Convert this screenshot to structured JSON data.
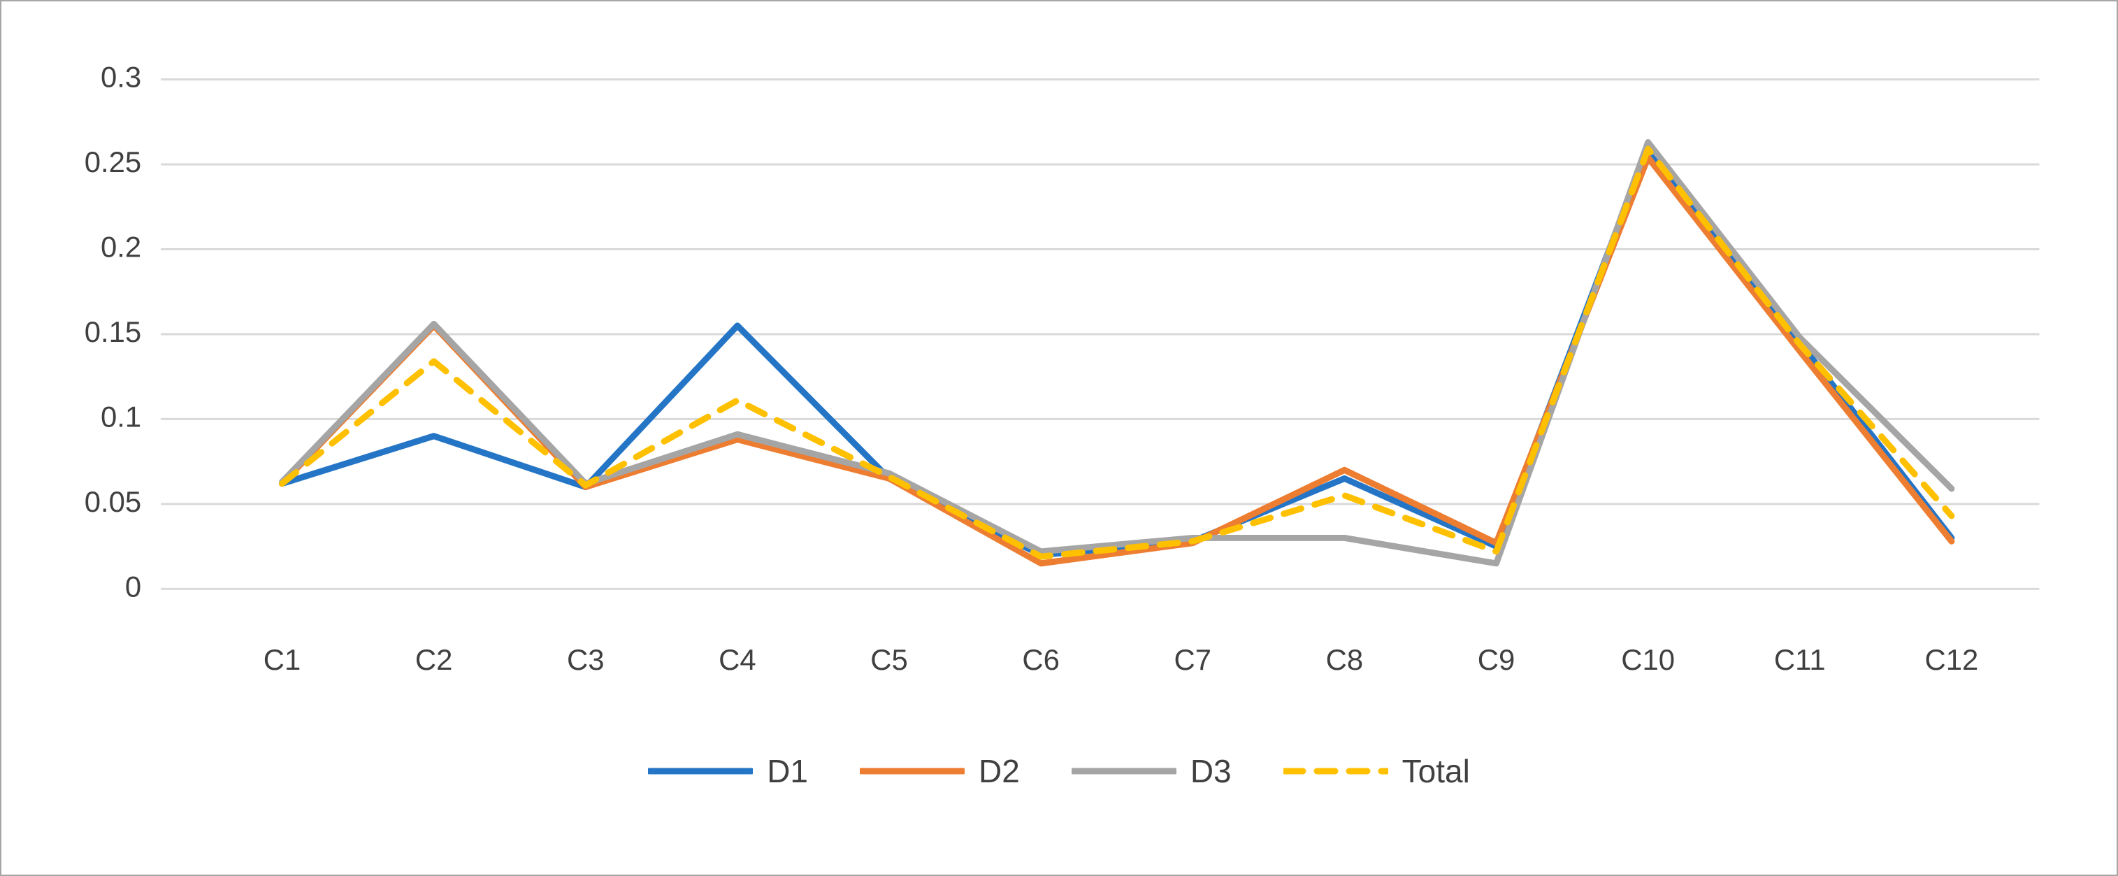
{
  "figure": {
    "background": "#ffffff",
    "border_color": "#a6a6a6"
  },
  "chart_data": {
    "type": "line",
    "title": "",
    "xlabel": "",
    "ylabel": "",
    "categories": [
      "C1",
      "C2",
      "C3",
      "C4",
      "C5",
      "C6",
      "C7",
      "C8",
      "C9",
      "C10",
      "C11",
      "C12"
    ],
    "series": [
      {
        "name": "D1",
        "color": "#2575c6",
        "dashed": false,
        "values": [
          0.062,
          0.09,
          0.06,
          0.155,
          0.065,
          0.02,
          0.028,
          0.065,
          0.025,
          0.26,
          0.145,
          0.03
        ]
      },
      {
        "name": "D2",
        "color": "#ED7D31",
        "dashed": false,
        "values": [
          0.062,
          0.155,
          0.06,
          0.088,
          0.065,
          0.015,
          0.027,
          0.07,
          0.027,
          0.254,
          0.14,
          0.028
        ]
      },
      {
        "name": "D3",
        "color": "#A5A5A5",
        "dashed": false,
        "values": [
          0.063,
          0.156,
          0.062,
          0.091,
          0.068,
          0.022,
          0.03,
          0.03,
          0.015,
          0.263,
          0.148,
          0.059
        ]
      },
      {
        "name": "Total",
        "color": "#FFC000",
        "dashed": true,
        "values": [
          0.062,
          0.134,
          0.061,
          0.111,
          0.066,
          0.019,
          0.028,
          0.055,
          0.022,
          0.259,
          0.144,
          0.043
        ]
      }
    ],
    "ylim": [
      0,
      0.3
    ],
    "y_ticks": [
      0,
      0.05,
      0.1,
      0.15,
      0.2,
      0.25,
      0.3
    ],
    "y_tick_labels": [
      "0",
      "0.05",
      "0.1",
      "0.15",
      "0.2",
      "0.25",
      "0.3"
    ],
    "grid": "horizontal",
    "gridline_color": "#d9d9d9",
    "legend_position": "bottom"
  }
}
